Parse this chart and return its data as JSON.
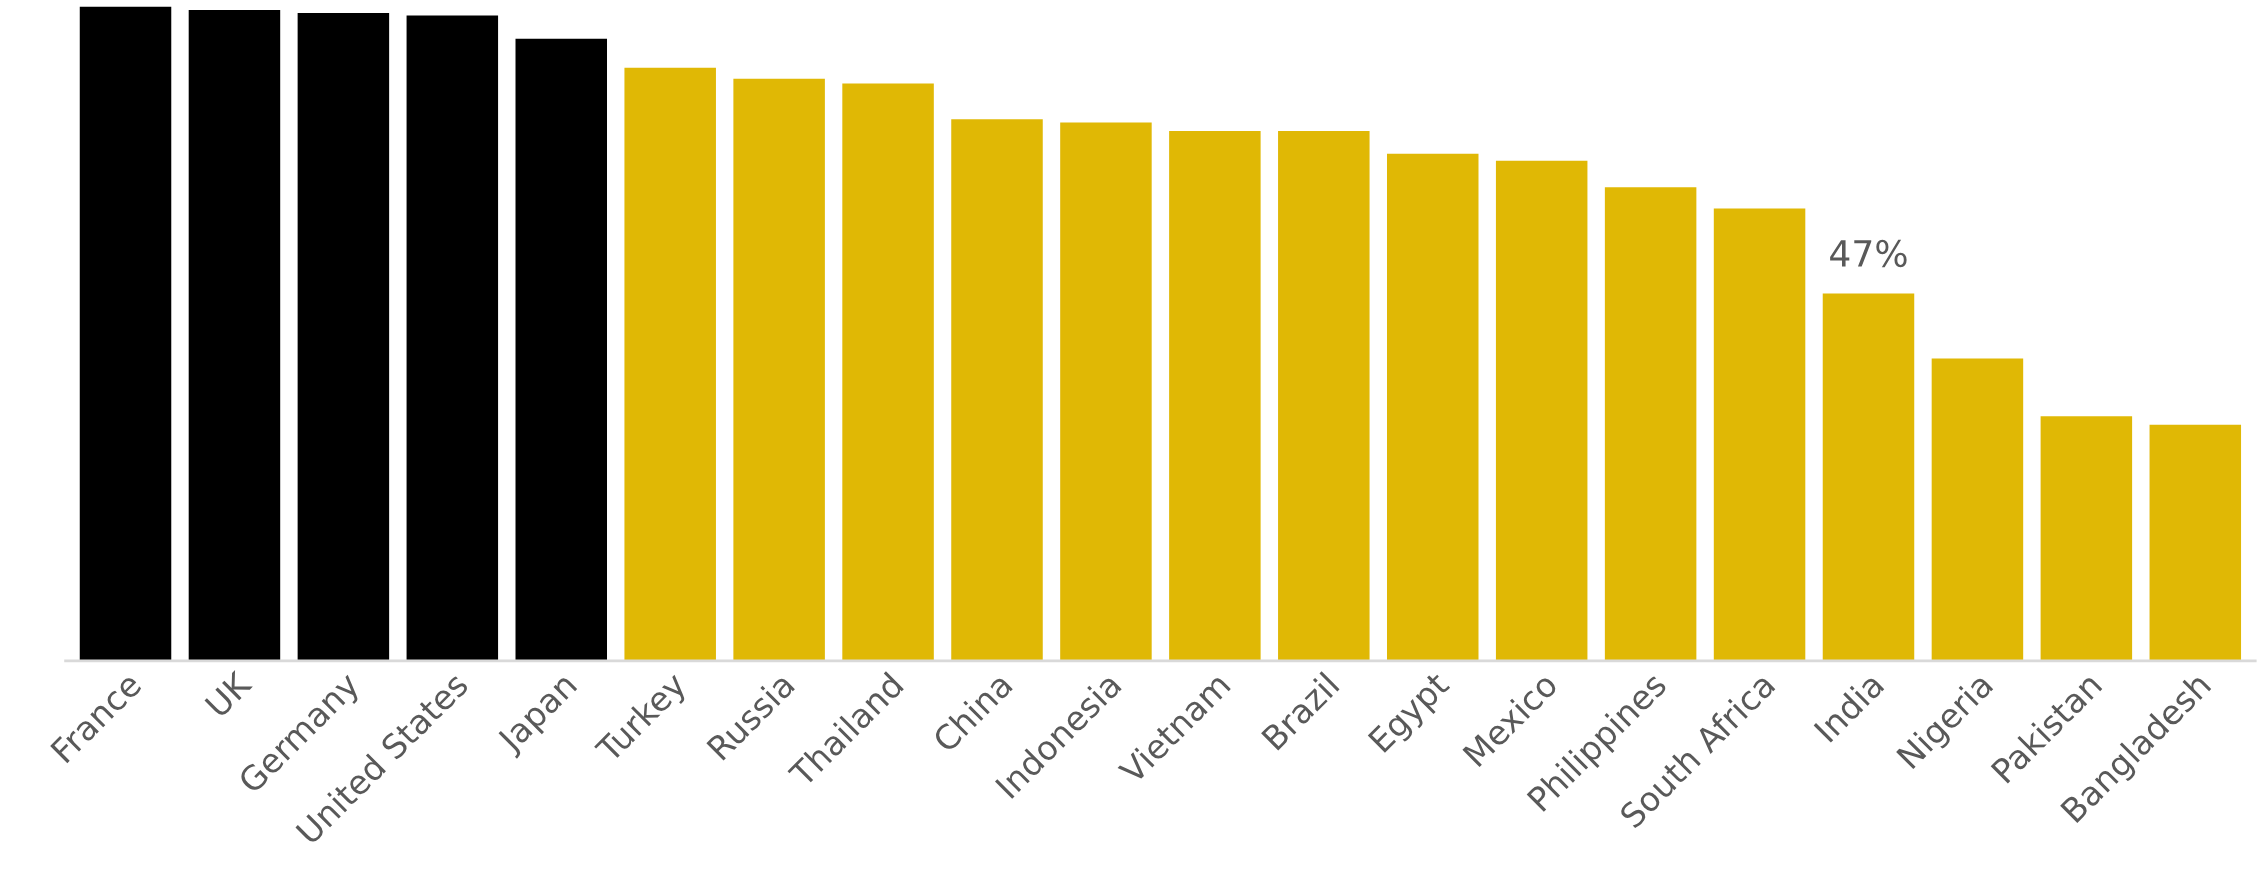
{
  "chart_data": {
    "type": "bar",
    "categories": [
      "France",
      "UK",
      "Germany",
      "United States",
      "Japan",
      "Turkey",
      "Russia",
      "Thailand",
      "China",
      "Indonesia",
      "Vietnam",
      "Brazil",
      "Egypt",
      "Mexico",
      "Philippines",
      "South Africa",
      "India",
      "Nigeria",
      "Pakistan",
      "Bangladesh"
    ],
    "values": [
      83.7,
      83.3,
      82.9,
      82.6,
      79.6,
      75.9,
      74.5,
      73.9,
      69.3,
      68.9,
      67.8,
      67.8,
      64.9,
      64.0,
      60.6,
      57.9,
      47,
      38.7,
      31.3,
      30.2
    ],
    "colors": [
      "#000000",
      "#000000",
      "#000000",
      "#000000",
      "#000000",
      "#e0b805",
      "#e0b805",
      "#e0b805",
      "#e0b805",
      "#e0b805",
      "#e0b805",
      "#e0b805",
      "#e0b805",
      "#e0b805",
      "#e0b805",
      "#e0b805",
      "#e0b805",
      "#e0b805",
      "#e0b805",
      "#e0b805"
    ],
    "value_labels": [
      null,
      null,
      null,
      null,
      null,
      null,
      null,
      null,
      null,
      null,
      null,
      null,
      null,
      null,
      null,
      null,
      "47%",
      null,
      null,
      null
    ],
    "ylim": [
      0,
      84
    ],
    "tick_labels": "x",
    "grid": false,
    "legend": false
  }
}
